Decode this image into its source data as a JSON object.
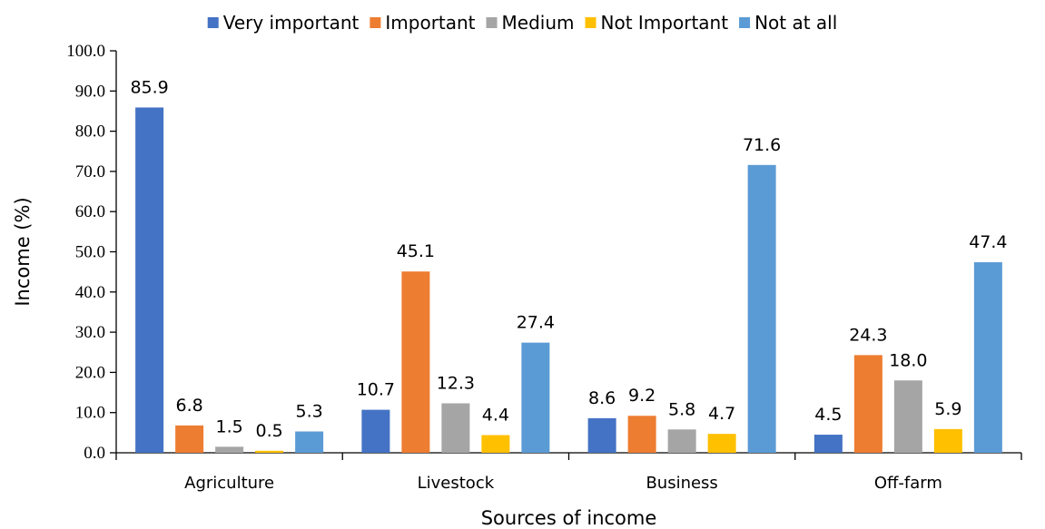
{
  "chart_data": {
    "type": "bar",
    "title": "",
    "xlabel": "Sources of income",
    "ylabel": "Income (%)",
    "ylim": [
      0,
      100
    ],
    "ytick_step": 10,
    "ytick_decimals": 1,
    "grid": false,
    "legend_position": "top",
    "categories": [
      "Agriculture",
      "Livestock",
      "Business",
      "Off-farm"
    ],
    "series": [
      {
        "name": "Very important",
        "color": "#4472C4",
        "values": [
          85.9,
          10.7,
          8.6,
          4.5
        ]
      },
      {
        "name": "Important",
        "color": "#ED7D31",
        "values": [
          6.8,
          45.1,
          9.2,
          24.3
        ]
      },
      {
        "name": "Medium",
        "color": "#A5A5A5",
        "values": [
          1.5,
          12.3,
          5.8,
          18.0
        ]
      },
      {
        "name": "Not Important",
        "color": "#FFC000",
        "values": [
          0.5,
          4.4,
          4.7,
          5.9
        ]
      },
      {
        "name": "Not at all",
        "color": "#5B9BD5",
        "values": [
          5.3,
          27.4,
          71.6,
          47.4
        ]
      }
    ]
  }
}
